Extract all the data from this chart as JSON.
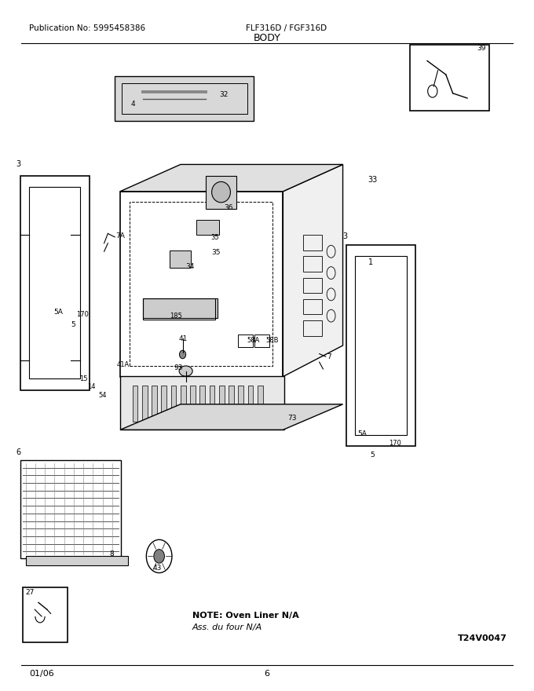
{
  "pub_no": "Publication No: 5995458386",
  "model": "FLF316D / FGF316D",
  "section": "BODY",
  "date": "01/06",
  "page": "6",
  "diagram_id": "T24V0047",
  "note_line1": "NOTE: Oven Liner N/A",
  "note_line2": "Ass. du four N/A",
  "bg_color": "#ffffff",
  "line_color": "#000000",
  "text_color": "#000000",
  "fig_width": 6.8,
  "fig_height": 8.8,
  "dpi": 100
}
